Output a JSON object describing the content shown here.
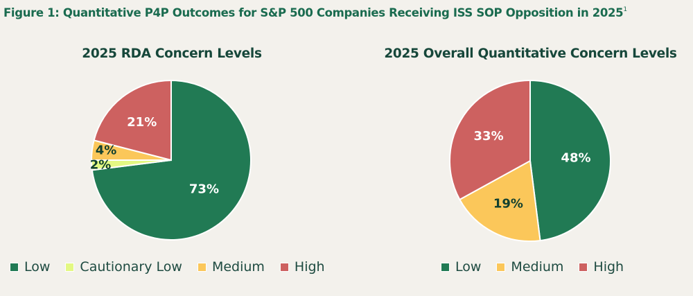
{
  "figure": {
    "title": "Figure 1: Quantitative P4P Outcomes for S&P 500 Companies Receiving ISS SOP Opposition in 2025",
    "footnote_marker": "1"
  },
  "colors": {
    "low": "#217a54",
    "cautionary_low": "#e3f883",
    "medium": "#fbc75a",
    "high": "#cd6160"
  },
  "chart_data": [
    {
      "type": "pie",
      "title": "2025 RDA Concern Levels",
      "start": "12 o'clock, clockwise",
      "slices": [
        {
          "label": "Low",
          "value": 73,
          "data_label": "73%",
          "color": "#217a54",
          "label_color": "#ffffff"
        },
        {
          "label": "Cautionary Low",
          "value": 2,
          "data_label": "2%",
          "color": "#e3f883",
          "label_color": "#12402f"
        },
        {
          "label": "Medium",
          "value": 4,
          "data_label": "4%",
          "color": "#fbc75a",
          "label_color": "#12402f"
        },
        {
          "label": "High",
          "value": 21,
          "data_label": "21%",
          "color": "#cd6160",
          "label_color": "#ffffff"
        }
      ],
      "legend": [
        "Low",
        "Cautionary Low",
        "Medium",
        "High"
      ],
      "legend_position": "bottom"
    },
    {
      "type": "pie",
      "title": "2025 Overall Quantitative Concern Levels",
      "start": "12 o'clock, clockwise",
      "slices": [
        {
          "label": "Low",
          "value": 48,
          "data_label": "48%",
          "color": "#217a54",
          "label_color": "#ffffff"
        },
        {
          "label": "Medium",
          "value": 19,
          "data_label": "19%",
          "color": "#fbc75a",
          "label_color": "#12402f"
        },
        {
          "label": "High",
          "value": 33,
          "data_label": "33%",
          "color": "#cd6160",
          "label_color": "#ffffff"
        }
      ],
      "legend": [
        "Low",
        "Medium",
        "High"
      ],
      "legend_position": "bottom"
    }
  ]
}
